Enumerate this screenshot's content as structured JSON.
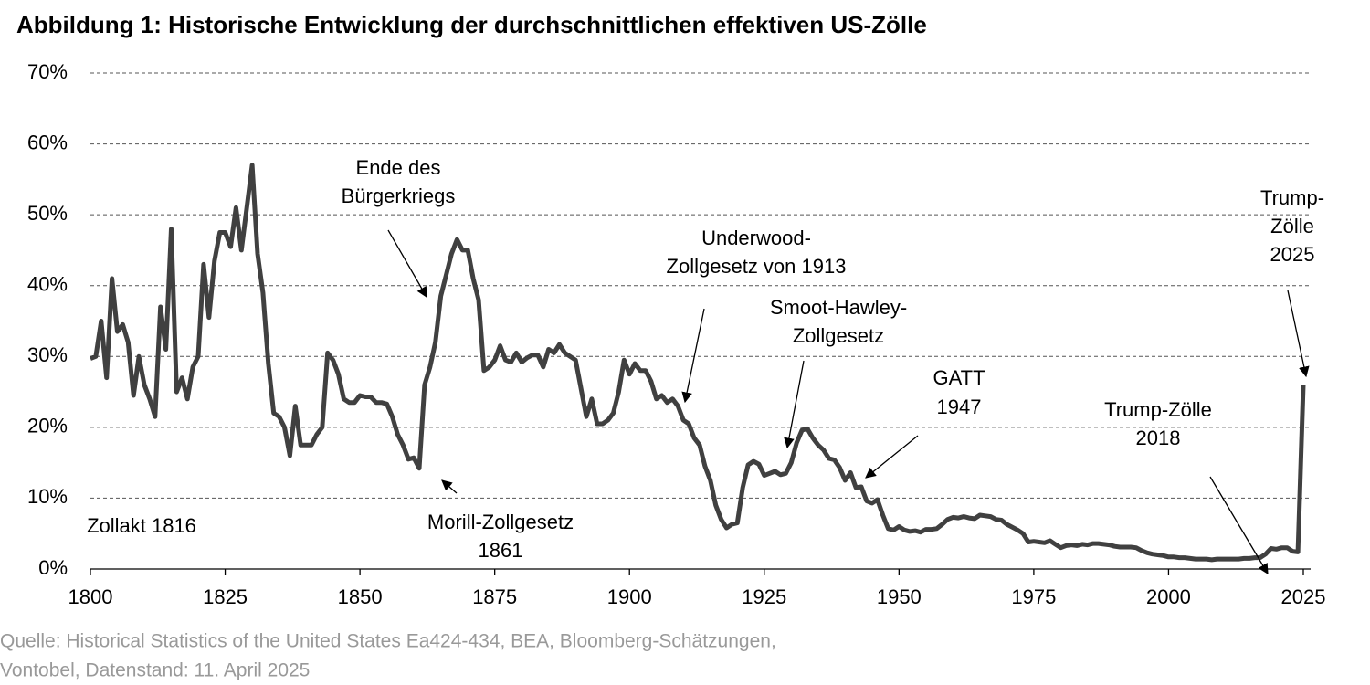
{
  "chart_data": {
    "type": "line",
    "title": "Abbildung 1: Historische Entwicklung der durchschnittlichen effektiven US-Zölle",
    "source": [
      "Quelle: Historical Statistics of the United States Ea424-434, BEA, Bloomberg-Schätzungen,",
      "Vontobel, Datenstand: 11. April 2025"
    ],
    "color": "#404040",
    "grid": true,
    "xlim": [
      1800,
      2025
    ],
    "xticks": [
      1800,
      1825,
      1850,
      1875,
      1900,
      1925,
      1950,
      1975,
      2000,
      2025
    ],
    "ylim": [
      0,
      70
    ],
    "yticks": [
      {
        "value": 0,
        "label": "0%"
      },
      {
        "value": 10,
        "label": "10%"
      },
      {
        "value": 20,
        "label": "20%"
      },
      {
        "value": 30,
        "label": "30%"
      },
      {
        "value": 40,
        "label": "40%"
      },
      {
        "value": 50,
        "label": "50%"
      },
      {
        "value": 60,
        "label": "60%"
      },
      {
        "value": 70,
        "label": "70%"
      }
    ],
    "x": [
      1800,
      1801,
      1802,
      1803,
      1804,
      1805,
      1806,
      1807,
      1808,
      1809,
      1810,
      1811,
      1812,
      1813,
      1814,
      1815,
      1816,
      1817,
      1818,
      1819,
      1820,
      1821,
      1822,
      1823,
      1824,
      1825,
      1826,
      1827,
      1828,
      1829,
      1830,
      1831,
      1832,
      1833,
      1834,
      1835,
      1836,
      1837,
      1838,
      1839,
      1840,
      1841,
      1842,
      1843,
      1844,
      1845,
      1846,
      1847,
      1848,
      1849,
      1850,
      1851,
      1852,
      1853,
      1854,
      1855,
      1856,
      1857,
      1858,
      1859,
      1860,
      1861,
      1862,
      1863,
      1864,
      1865,
      1866,
      1867,
      1868,
      1869,
      1870,
      1871,
      1872,
      1873,
      1874,
      1875,
      1876,
      1877,
      1878,
      1879,
      1880,
      1881,
      1882,
      1883,
      1884,
      1885,
      1886,
      1887,
      1888,
      1889,
      1890,
      1891,
      1892,
      1893,
      1894,
      1895,
      1896,
      1897,
      1898,
      1899,
      1900,
      1901,
      1902,
      1903,
      1904,
      1905,
      1906,
      1907,
      1908,
      1909,
      1910,
      1911,
      1912,
      1913,
      1914,
      1915,
      1916,
      1917,
      1918,
      1919,
      1920,
      1921,
      1922,
      1923,
      1924,
      1925,
      1926,
      1927,
      1928,
      1929,
      1930,
      1931,
      1932,
      1933,
      1934,
      1935,
      1936,
      1937,
      1938,
      1939,
      1940,
      1941,
      1942,
      1943,
      1944,
      1945,
      1946,
      1947,
      1948,
      1949,
      1950,
      1951,
      1952,
      1953,
      1954,
      1955,
      1956,
      1957,
      1958,
      1959,
      1960,
      1961,
      1962,
      1963,
      1964,
      1965,
      1966,
      1967,
      1968,
      1969,
      1970,
      1971,
      1972,
      1973,
      1974,
      1975,
      1976,
      1977,
      1978,
      1979,
      1980,
      1981,
      1982,
      1983,
      1984,
      1985,
      1986,
      1987,
      1988,
      1989,
      1990,
      1991,
      1992,
      1993,
      1994,
      1995,
      1996,
      1997,
      1998,
      1999,
      2000,
      2001,
      2002,
      2003,
      2004,
      2005,
      2006,
      2007,
      2008,
      2009,
      2010,
      2011,
      2012,
      2013,
      2014,
      2015,
      2016,
      2017,
      2018,
      2019,
      2020,
      2021,
      2022,
      2023,
      2024,
      2025
    ],
    "values": [
      29.7,
      30,
      35,
      27,
      41,
      33.5,
      34.5,
      32,
      24.5,
      30,
      26,
      24,
      21.5,
      37,
      31,
      48,
      25,
      27,
      24,
      28.5,
      30,
      43,
      35.5,
      43.5,
      47.5,
      47.5,
      45.5,
      51,
      45,
      51,
      57,
      44.5,
      39,
      29,
      22,
      21.5,
      20,
      16,
      23,
      17.5,
      17.5,
      17.5,
      19,
      20,
      30.5,
      29.5,
      27.5,
      24,
      23.5,
      23.5,
      24.5,
      24.3,
      24.3,
      23.5,
      23.5,
      23.3,
      21.5,
      19,
      17.5,
      15.5,
      15.7,
      14.2,
      26,
      28.5,
      32,
      38.5,
      41.5,
      44.5,
      46.5,
      45,
      45,
      41,
      38,
      28,
      28.5,
      29.5,
      31.5,
      29.5,
      29.2,
      30.5,
      29.2,
      29.8,
      30.2,
      30.2,
      28.5,
      31,
      30.5,
      31.7,
      30.5,
      30,
      29.5,
      25.5,
      21.5,
      24,
      20.5,
      20.5,
      21,
      22,
      25,
      29.5,
      27.5,
      29,
      28,
      28,
      26.5,
      24,
      24.5,
      23.5,
      24,
      23,
      21,
      20.5,
      18.5,
      17.5,
      14.5,
      12.5,
      9,
      7,
      5.8,
      6.3,
      6.5,
      11.5,
      14.7,
      15.2,
      14.8,
      13.2,
      13.5,
      13.8,
      13.3,
      13.5,
      15,
      17.8,
      19.6,
      19.8,
      18.5,
      17.5,
      16.8,
      15.6,
      15.4,
      14.3,
      12.5,
      13.6,
      11.5,
      11.6,
      9.6,
      9.3,
      9.8,
      7.6,
      5.7,
      5.5,
      6,
      5.5,
      5.3,
      5.4,
      5.2,
      5.6,
      5.6,
      5.7,
      6.3,
      7,
      7.3,
      7.2,
      7.4,
      7.2,
      7.1,
      7.6,
      7.5,
      7.4,
      7,
      6.9,
      6.3,
      5.9,
      5.5,
      5,
      3.8,
      3.9,
      3.8,
      3.7,
      4,
      3.5,
      3,
      3.3,
      3.4,
      3.3,
      3.5,
      3.4,
      3.6,
      3.6,
      3.5,
      3.4,
      3.2,
      3.1,
      3.1,
      3.1,
      3,
      2.6,
      2.3,
      2.1,
      2,
      1.9,
      1.7,
      1.7,
      1.6,
      1.6,
      1.5,
      1.4,
      1.4,
      1.4,
      1.3,
      1.4,
      1.4,
      1.4,
      1.4,
      1.4,
      1.5,
      1.5,
      1.6,
      1.6,
      2.1,
      2.9,
      2.8,
      3,
      3,
      2.5,
      2.4,
      26
    ],
    "annotations": [
      {
        "lines": [
          "Zollakt 1816"
        ]
      },
      {
        "lines": [
          "Ende des",
          "Bürgerkriegs"
        ]
      },
      {
        "lines": [
          "Morill-Zollgesetz",
          "1861"
        ]
      },
      {
        "lines": [
          "Underwood-",
          "Zollgesetz von 1913"
        ]
      },
      {
        "lines": [
          "Smoot-Hawley-",
          "Zollgesetz"
        ]
      },
      {
        "lines": [
          "GATT",
          "1947"
        ]
      },
      {
        "lines": [
          "Trump-Zölle",
          "2018"
        ]
      },
      {
        "lines": [
          "Trump-",
          "Zölle",
          "2025"
        ]
      }
    ]
  }
}
